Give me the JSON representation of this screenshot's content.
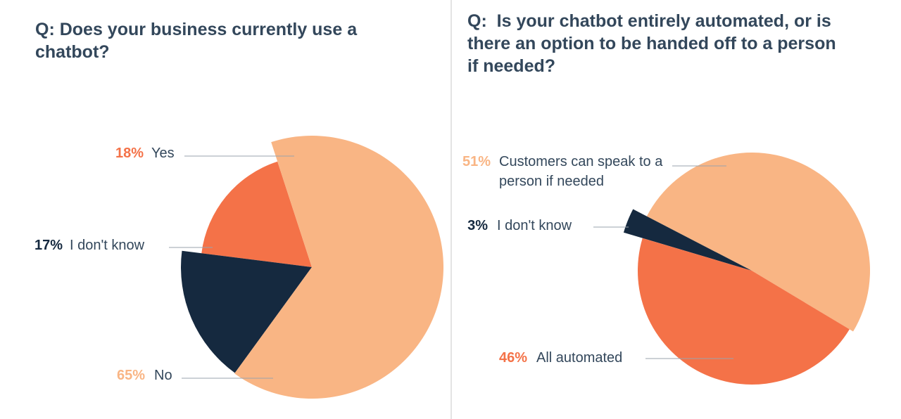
{
  "chart_data": [
    {
      "type": "pie",
      "title": "Q: Does your business currently use a chatbot?",
      "categories": [
        "Yes",
        "I don't know",
        "No"
      ],
      "values": [
        18,
        17,
        65
      ],
      "value_labels": [
        "18%",
        "17%",
        "65%"
      ],
      "colors": [
        "#f47248",
        "#15293f",
        "#f9b584"
      ]
    },
    {
      "type": "pie",
      "title": "Q:  Is your chatbot entirely automated, or is there an option to be handed off to a person if needed?",
      "categories": [
        "Customers can speak to a person if needed",
        "I don't know",
        "All automated"
      ],
      "values": [
        51,
        3,
        46
      ],
      "value_labels": [
        "51%",
        "3%",
        "46%"
      ],
      "colors": [
        "#f9b584",
        "#15293f",
        "#f47248"
      ]
    }
  ]
}
